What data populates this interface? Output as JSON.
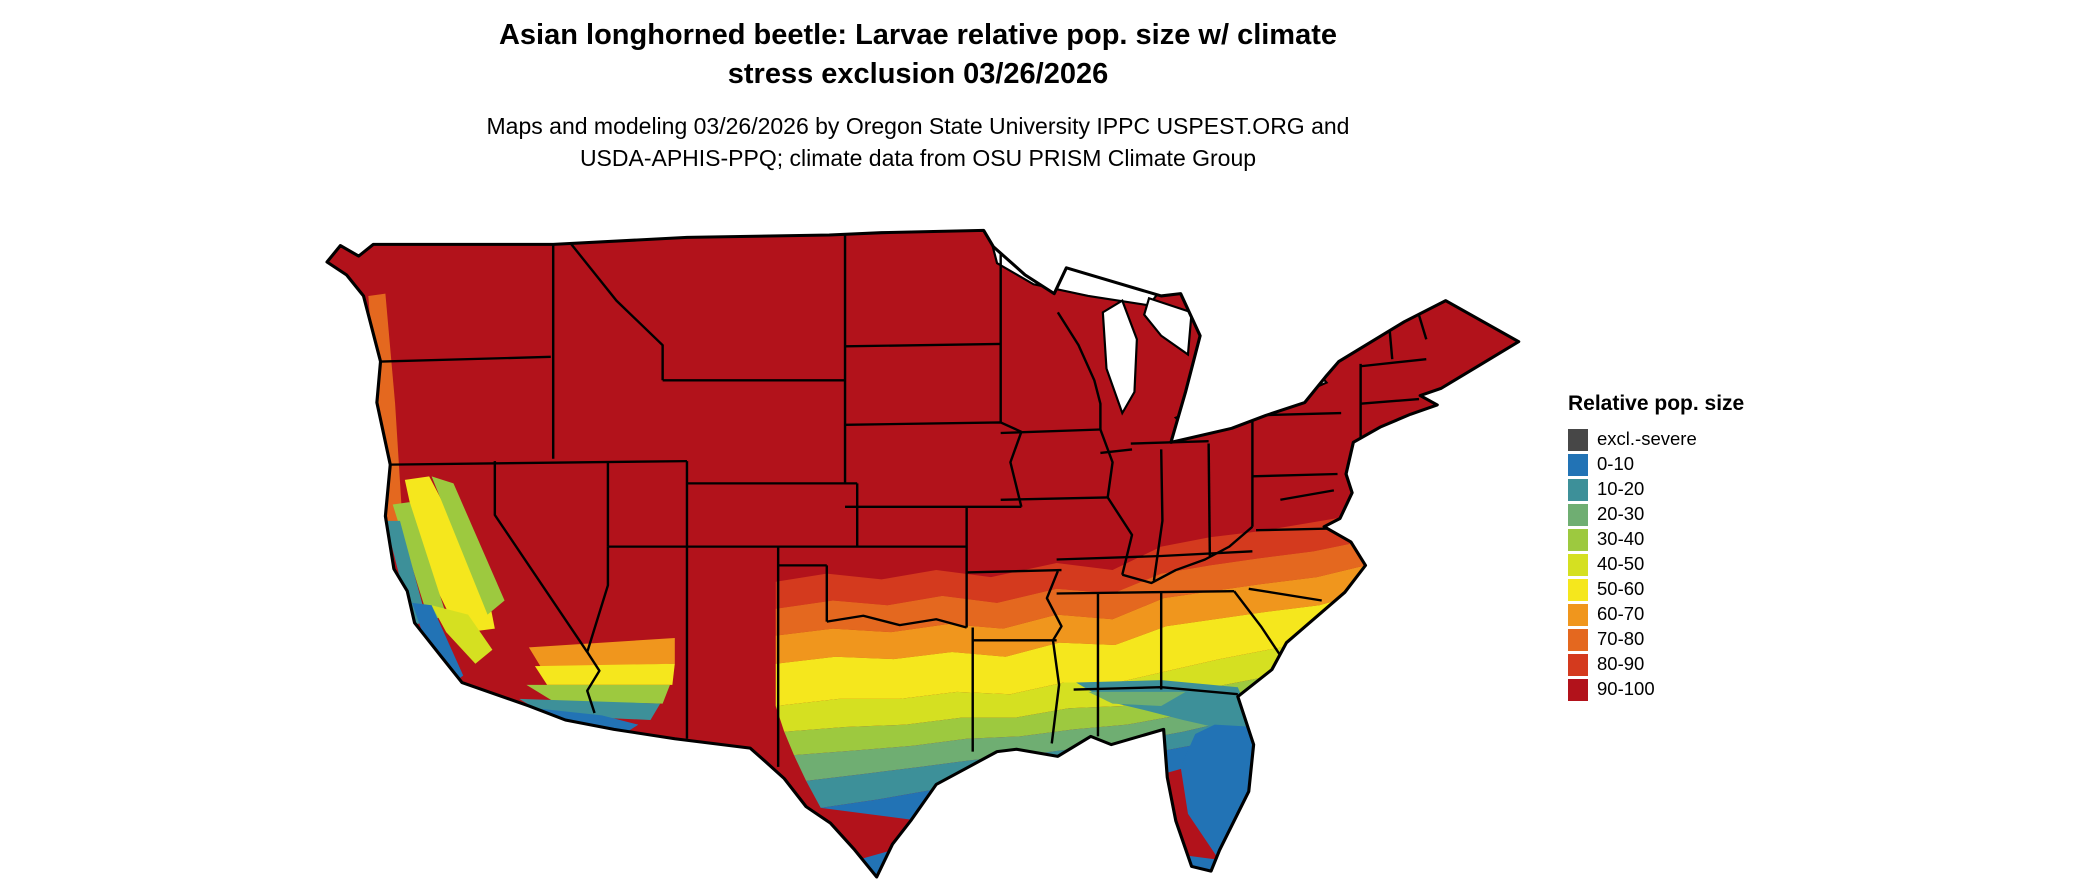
{
  "title": {
    "line1": "Asian longhorned beetle: Larvae relative pop. size w/ climate",
    "line2": "stress exclusion 03/26/2026"
  },
  "subtitle": {
    "line1": "Maps and modeling 03/26/2026 by Oregon State University IPPC USPEST.ORG and",
    "line2": "USDA-APHIS-PPQ; climate data from OSU PRISM Climate Group"
  },
  "legend": {
    "title": "Relative pop. size",
    "items": [
      {
        "label": "excl.-severe",
        "color": "#474747"
      },
      {
        "label": "0-10",
        "color": "#2273b5"
      },
      {
        "label": "10-20",
        "color": "#3d9099"
      },
      {
        "label": "20-30",
        "color": "#6fae72"
      },
      {
        "label": "30-40",
        "color": "#9dc93f"
      },
      {
        "label": "40-50",
        "color": "#d5e021"
      },
      {
        "label": "50-60",
        "color": "#f5e71d"
      },
      {
        "label": "60-70",
        "color": "#f0961d"
      },
      {
        "label": "70-80",
        "color": "#e4681f"
      },
      {
        "label": "80-90",
        "color": "#d43a1e"
      },
      {
        "label": "90-100",
        "color": "#b2121b"
      }
    ]
  },
  "map": {
    "type": "choropleth",
    "region": "Contiguous United States",
    "variable": "Relative pop. size",
    "pattern_north_to_south": [
      "90-100",
      "80-90",
      "70-80",
      "60-70",
      "50-60",
      "40-50",
      "30-40",
      "20-30",
      "10-20",
      "0-10"
    ],
    "summary": "Northern and central US shown in the 90-100 class (dark red); classes decrease southward in bands toward the Gulf Coast, south Texas and the Florida peninsula (0-10, blue); lower classes also along coastal/central California and southwestern Arizona; Pacific Northwest coast shows a narrow 70-80 strip."
  }
}
